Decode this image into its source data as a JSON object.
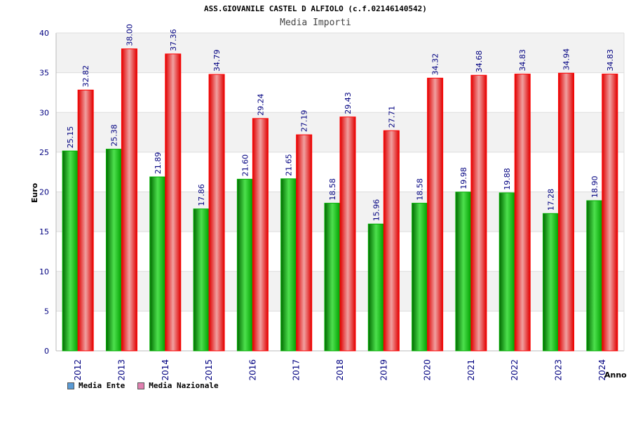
{
  "header": {
    "title": "ASS.GIOVANILE CASTEL D ALFIOLO (c.f.02146140542)",
    "subtitle": "Media Importi"
  },
  "colors": {
    "series_1": "#00b000",
    "series_2": "#ff0000",
    "legend_1": "#5b9bd5",
    "legend_2": "#e080b0",
    "tick_text": "#000080",
    "label_text": "#000080",
    "band": "#f2f2f2",
    "grid": "#dddddd"
  },
  "legend": {
    "items": [
      "Media Ente",
      "Media Nazionale"
    ]
  },
  "chart_data": {
    "type": "bar",
    "title": "ASS.GIOVANILE CASTEL D ALFIOLO (c.f.02146140542)",
    "subtitle": "Media Importi",
    "xlabel": "Anno",
    "ylabel": "Euro",
    "ylim": [
      0,
      40
    ],
    "yticks": [
      0,
      5,
      10,
      15,
      20,
      25,
      30,
      35,
      40
    ],
    "grid": true,
    "legend_position": "bottom-left",
    "categories": [
      "2012",
      "2013",
      "2014",
      "2015",
      "2016",
      "2017",
      "2018",
      "2019",
      "2020",
      "2021",
      "2022",
      "2023",
      "2024"
    ],
    "series": [
      {
        "name": "Media Ente",
        "values": [
          25.15,
          25.38,
          21.89,
          17.86,
          21.6,
          21.65,
          18.58,
          15.96,
          18.58,
          19.98,
          19.88,
          17.28,
          18.9
        ],
        "labels": [
          "25.15",
          "25.38",
          "21.89",
          "17.86",
          "21.60",
          "21.65",
          "18.58",
          "15.96",
          "18.58",
          "19.98",
          "19.88",
          "17.28",
          "18.90"
        ]
      },
      {
        "name": "Media Nazionale",
        "values": [
          32.82,
          38.0,
          37.36,
          34.79,
          29.24,
          27.19,
          29.43,
          27.71,
          34.32,
          34.68,
          34.83,
          34.94,
          34.83
        ],
        "labels": [
          "32.82",
          "38.00",
          "37.36",
          "34.79",
          "29.24",
          "27.19",
          "29.43",
          "27.71",
          "34.32",
          "34.68",
          "34.83",
          "34.94",
          "34.83"
        ]
      }
    ]
  }
}
